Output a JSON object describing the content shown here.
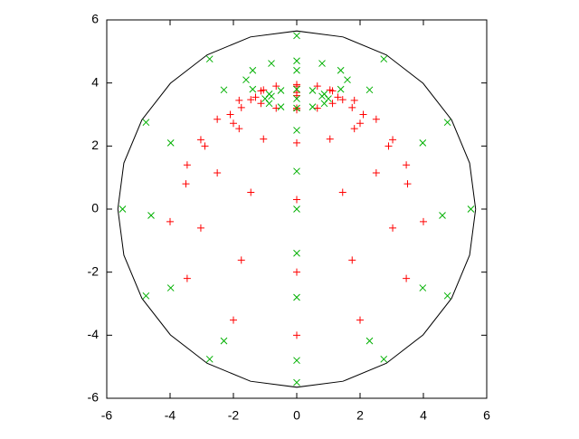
{
  "chart_data": {
    "type": "scatter",
    "xlim": [
      -6,
      6
    ],
    "ylim": [
      -6,
      6
    ],
    "xticks": [
      -6,
      -4,
      -2,
      0,
      2,
      4,
      6
    ],
    "yticks": [
      -6,
      -4,
      -2,
      0,
      2,
      4,
      6
    ],
    "series": [
      {
        "style": "line",
        "color": "#000000",
        "x": [
          5.65,
          5.46,
          4.89,
          3.99,
          2.83,
          1.46,
          0,
          -1.46,
          -2.83,
          -3.99,
          -4.89,
          -5.46,
          -5.65,
          -5.46,
          -4.89,
          -3.99,
          -2.83,
          -1.46,
          0,
          1.46,
          2.83,
          3.99,
          4.89,
          5.46,
          5.65
        ],
        "values": [
          0,
          1.46,
          2.83,
          3.99,
          4.89,
          5.46,
          5.65,
          5.46,
          4.89,
          3.99,
          2.83,
          1.46,
          0,
          -1.46,
          -2.83,
          -3.99,
          -4.89,
          -5.46,
          -5.65,
          -5.46,
          -4.89,
          -3.99,
          -2.83,
          -1.46,
          0
        ]
      },
      {
        "style": "plus",
        "color": "#ff0000",
        "x": [
          1.3,
          1.13,
          0.65,
          0,
          -0.65,
          -1.13,
          -1.3,
          -1.13,
          -0.65,
          0,
          0.65,
          1.13,
          2.1,
          1.82,
          1.05,
          0,
          -1.05,
          -1.82,
          -2.1,
          -1.82,
          -1.05,
          0,
          1.05,
          1.82,
          2.9,
          2.51,
          1.45,
          0,
          -1.45,
          -2.51,
          -2.9,
          -2.51,
          -1.45,
          0,
          1.45,
          2.51,
          3.5,
          3.03,
          1.75,
          0,
          -1.75,
          -3.03,
          -3.5,
          -3.03,
          -1.75,
          0,
          1.75,
          3.03,
          4.0,
          3.46,
          2.0,
          0,
          -2.0,
          -3.46,
          -4.0,
          -3.46,
          -2.0,
          0,
          2.0,
          3.46
        ],
        "values": [
          3.55,
          3.75,
          3.9,
          3.95,
          3.9,
          3.75,
          3.55,
          3.35,
          3.2,
          3.15,
          3.2,
          3.35,
          3.0,
          3.45,
          3.78,
          3.9,
          3.78,
          3.45,
          3.0,
          2.55,
          2.22,
          2.1,
          2.22,
          2.55,
          2.0,
          2.85,
          3.47,
          3.7,
          3.47,
          2.85,
          2.0,
          1.15,
          0.53,
          0.3,
          0.53,
          1.15,
          0.8,
          2.2,
          3.22,
          3.6,
          3.22,
          2.2,
          0.8,
          -0.6,
          -1.62,
          -2.0,
          -1.62,
          -0.6,
          -0.4,
          1.4,
          2.72,
          3.2,
          2.72,
          1.4,
          -0.4,
          -2.2,
          -3.52,
          -4.0,
          -3.52,
          -2.2
        ]
      },
      {
        "style": "cross",
        "color": "#00b000",
        "x": [
          1.0,
          0.87,
          0.5,
          0,
          -0.5,
          -0.87,
          -1.0,
          -0.87,
          -0.5,
          0,
          0.5,
          0.87,
          1.6,
          1.39,
          0.8,
          0,
          -0.8,
          -1.39,
          -1.6,
          -1.39,
          -0.8,
          0,
          0.8,
          1.39,
          4.6,
          3.98,
          2.3,
          0,
          -2.3,
          -3.98,
          -4.6,
          -3.98,
          -2.3,
          0,
          2.3,
          3.98,
          5.5,
          4.76,
          2.75,
          0,
          -2.75,
          -4.76,
          -5.5,
          -4.76,
          -2.75,
          0,
          2.75,
          4.76,
          0,
          0,
          0,
          0,
          0
        ],
        "values": [
          3.5,
          3.65,
          3.76,
          3.8,
          3.76,
          3.65,
          3.5,
          3.35,
          3.24,
          3.2,
          3.24,
          3.35,
          4.1,
          4.4,
          4.62,
          4.7,
          4.62,
          4.4,
          4.1,
          3.8,
          3.58,
          3.5,
          3.58,
          3.8,
          -0.2,
          2.1,
          3.78,
          4.4,
          3.78,
          2.1,
          -0.2,
          -2.5,
          -4.18,
          -4.8,
          -4.18,
          -2.5,
          0,
          2.75,
          4.76,
          5.5,
          4.76,
          2.75,
          0,
          -2.75,
          -4.76,
          -5.5,
          -4.76,
          -2.75,
          2.5,
          1.2,
          0,
          -1.4,
          -2.8
        ]
      }
    ]
  }
}
